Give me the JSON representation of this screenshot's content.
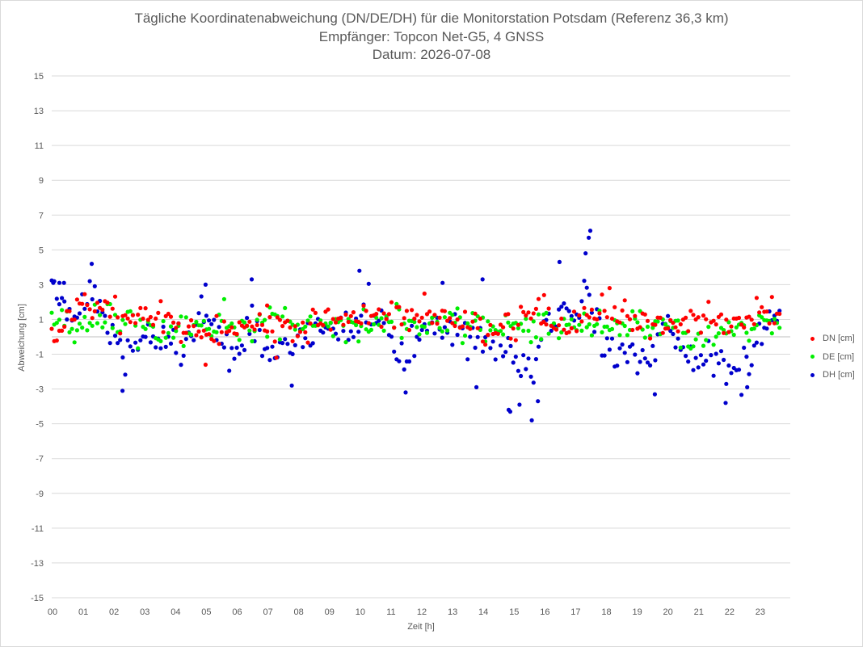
{
  "chart_data": {
    "type": "scatter",
    "title_lines": [
      "Tägliche Koordinatenabweichung (DN/DE/DH) für die Monitorstation Potsdam (Referenz 36,3 km)",
      "Empfänger: Topcon Net-G5, 4 GNSS",
      "Datum: 2026-07-08"
    ],
    "xlabel": "Zeit [h]",
    "ylabel": "Abweichung [cm]",
    "xlim": [
      0,
      24
    ],
    "ylim": [
      -15,
      15
    ],
    "x_tick_labels": [
      "00",
      "01",
      "02",
      "03",
      "04",
      "05",
      "06",
      "07",
      "08",
      "09",
      "10",
      "11",
      "12",
      "13",
      "14",
      "15",
      "16",
      "17",
      "18",
      "19",
      "20",
      "21",
      "22",
      "23"
    ],
    "y_ticks": [
      15,
      13,
      11,
      9,
      7,
      5,
      3,
      1,
      -1,
      -3,
      -5,
      -7,
      -9,
      -11,
      -13,
      -15
    ],
    "grid": "horizontal",
    "legend_position": "right",
    "points_per_series": 288,
    "series": [
      {
        "name": "DN [cm]",
        "color": "#ff0000",
        "keyframes": [
          [
            0,
            0.0
          ],
          [
            0.5,
            1.1
          ],
          [
            1,
            1.5
          ],
          [
            1.5,
            2.1
          ],
          [
            2,
            1.3
          ],
          [
            3,
            1.2
          ],
          [
            4,
            0.6
          ],
          [
            5,
            0.1
          ],
          [
            6,
            0.5
          ],
          [
            7,
            0.7
          ],
          [
            8,
            0.8
          ],
          [
            9,
            0.8
          ],
          [
            10,
            0.9
          ],
          [
            11,
            1.2
          ],
          [
            12,
            1.2
          ],
          [
            13,
            1.3
          ],
          [
            14,
            0.6
          ],
          [
            15,
            0.7
          ],
          [
            15.8,
            1.6
          ],
          [
            16,
            0.6
          ],
          [
            17,
            0.5
          ],
          [
            17.6,
            1.3
          ],
          [
            18,
            1.9
          ],
          [
            19,
            0.9
          ],
          [
            20,
            0.6
          ],
          [
            21,
            1.2
          ],
          [
            21.5,
            1.0
          ],
          [
            22,
            0.5
          ],
          [
            22.5,
            0.8
          ],
          [
            23,
            1.2
          ],
          [
            23.6,
            1.6
          ]
        ],
        "spread": 0.85
      },
      {
        "name": "DE [cm]",
        "color": "#00ee00",
        "keyframes": [
          [
            0,
            0.6
          ],
          [
            1,
            0.9
          ],
          [
            2,
            1.0
          ],
          [
            3,
            0.6
          ],
          [
            4,
            0.4
          ],
          [
            5,
            0.7
          ],
          [
            6,
            0.8
          ],
          [
            7,
            0.8
          ],
          [
            8,
            0.7
          ],
          [
            9,
            0.8
          ],
          [
            10,
            0.6
          ],
          [
            11,
            0.7
          ],
          [
            12,
            0.6
          ],
          [
            13,
            0.8
          ],
          [
            14,
            0.7
          ],
          [
            15,
            0.4
          ],
          [
            16,
            0.6
          ],
          [
            17,
            0.3
          ],
          [
            18,
            0.5
          ],
          [
            19,
            0.6
          ],
          [
            20,
            0.8
          ],
          [
            21,
            -0.3
          ],
          [
            22,
            0.5
          ],
          [
            23,
            0.8
          ],
          [
            23.6,
            0.9
          ]
        ],
        "spread": 0.8
      },
      {
        "name": "DH [cm]",
        "color": "#0000cc",
        "keyframes": [
          [
            0,
            2.5
          ],
          [
            0.5,
            1.5
          ],
          [
            1,
            1.8
          ],
          [
            1.3,
            2.6
          ],
          [
            1.7,
            0.5
          ],
          [
            2,
            -0.6
          ],
          [
            2.4,
            -1.2
          ],
          [
            3,
            0.2
          ],
          [
            4,
            0.0
          ],
          [
            4.5,
            -0.4
          ],
          [
            5,
            1.5
          ],
          [
            5.5,
            -0.5
          ],
          [
            6,
            -0.7
          ],
          [
            6.5,
            0.8
          ],
          [
            7,
            -0.8
          ],
          [
            8,
            -0.2
          ],
          [
            9,
            0.5
          ],
          [
            10,
            0.9
          ],
          [
            10.3,
            1.8
          ],
          [
            11,
            0.0
          ],
          [
            11.3,
            -1.6
          ],
          [
            12,
            -0.6
          ],
          [
            12.5,
            0.8
          ],
          [
            13,
            0.3
          ],
          [
            14,
            0.0
          ],
          [
            14.5,
            -0.5
          ],
          [
            15,
            -1.4
          ],
          [
            15.6,
            -1.8
          ],
          [
            16,
            0.3
          ],
          [
            16.5,
            1.1
          ],
          [
            17,
            1.5
          ],
          [
            17.4,
            2.5
          ],
          [
            18,
            -0.5
          ],
          [
            19,
            -1.2
          ],
          [
            19.5,
            -1.0
          ],
          [
            20,
            0.6
          ],
          [
            20.5,
            -1.2
          ],
          [
            21,
            -1.3
          ],
          [
            21.5,
            -1.2
          ],
          [
            22,
            -2.1
          ],
          [
            22.5,
            -1.6
          ],
          [
            23,
            0.2
          ],
          [
            23.5,
            1.4
          ]
        ],
        "spread": 1.1
      }
    ],
    "outliers": {
      "DH [cm]": [
        [
          0.05,
          3.1
        ],
        [
          0.25,
          3.1
        ],
        [
          0.4,
          3.1
        ],
        [
          1.3,
          4.2
        ],
        [
          5.0,
          3.0
        ],
        [
          6.5,
          3.3
        ],
        [
          10.0,
          3.8
        ],
        [
          12.7,
          3.1
        ],
        [
          14.0,
          3.3
        ],
        [
          16.5,
          4.3
        ],
        [
          17.5,
          6.1
        ],
        [
          17.45,
          5.7
        ],
        [
          17.35,
          4.8
        ],
        [
          2.3,
          -3.1
        ],
        [
          7.8,
          -2.8
        ],
        [
          11.5,
          -3.2
        ],
        [
          13.8,
          -2.9
        ],
        [
          14.85,
          -4.2
        ],
        [
          14.9,
          -4.3
        ],
        [
          15.2,
          -3.9
        ],
        [
          15.6,
          -4.8
        ],
        [
          15.8,
          -3.7
        ],
        [
          19.6,
          -3.3
        ],
        [
          21.9,
          -3.8
        ],
        [
          22.6,
          -2.9
        ]
      ],
      "DN [cm]": [
        [
          5.0,
          -1.6
        ],
        [
          7.3,
          -1.2
        ],
        [
          7.0,
          1.8
        ],
        [
          16.0,
          2.4
        ]
      ]
    }
  }
}
